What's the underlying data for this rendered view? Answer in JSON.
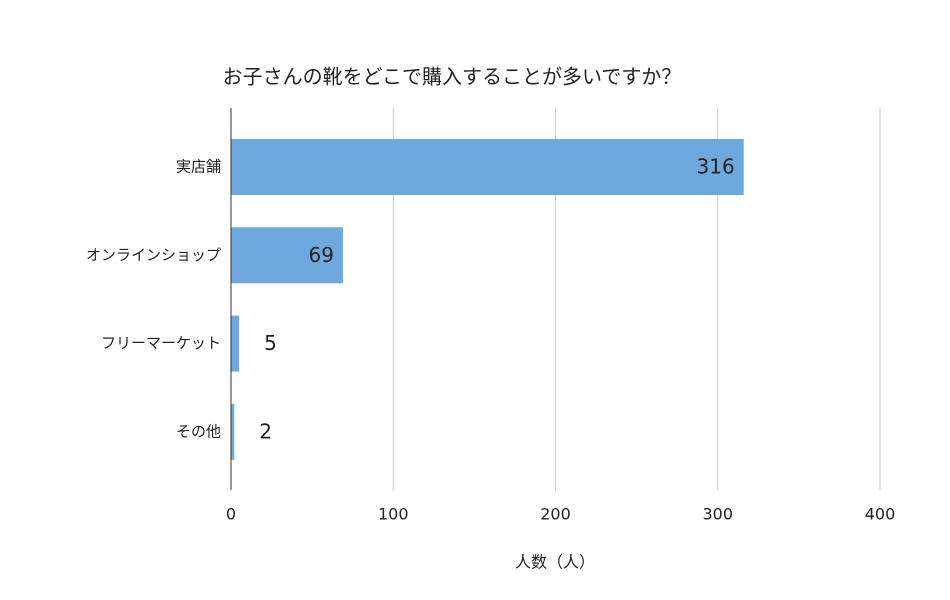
{
  "chart_data": {
    "type": "bar",
    "orientation": "horizontal",
    "title": "お子さんの靴をどこで購入することが多いですか？",
    "x_label": "人数（人）",
    "categories": [
      "実店舗",
      "オンラインショップ",
      "フリーマーケット",
      "その他"
    ],
    "values": [
      316,
      69,
      5,
      2
    ],
    "color": "#6fa8dc",
    "xlim": [
      0,
      400
    ],
    "xticks": [
      0,
      100,
      200,
      300,
      400
    ],
    "grid": true
  }
}
